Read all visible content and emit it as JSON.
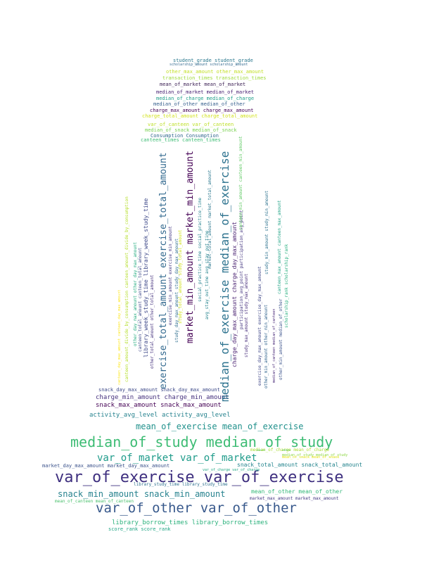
{
  "words": [
    {
      "text": "student_grade student_grade",
      "color": "#2a788e"
    },
    {
      "text": "scholarship_amount scholarship_amount",
      "color": "#31688e"
    },
    {
      "text": "other_max_amount other_max_amount",
      "color": "#c2df23"
    },
    {
      "text": "transaction_times transaction_times",
      "color": "#9fda3a"
    },
    {
      "text": "mean_of_market mean_of_market",
      "color": "#3b1f53"
    },
    {
      "text": "median_of_market median_of_market",
      "color": "#482173"
    },
    {
      "text": "median_of_charge median_of_charge",
      "color": "#1f9e89"
    },
    {
      "text": "median_of_other median_of_other",
      "color": "#355f8d"
    },
    {
      "text": "charge_max_amount charge_max_amount",
      "color": "#440154"
    },
    {
      "text": "charge_total_amount charge_total_amount",
      "color": "#d2e21b"
    },
    {
      "text": "var_of_canteen var_of_canteen",
      "color": "#bddf26"
    },
    {
      "text": "median_of_snack median_of_snack",
      "color": "#7ad151"
    },
    {
      "text": "Consumption Consumption",
      "color": "#31688e"
    },
    {
      "text": "canteen_times canteen_times",
      "color": "#3dbc74"
    },
    {
      "text": "snack_day_max_amount snack_day_max_amount",
      "color": "#3e4a89"
    },
    {
      "text": "charge_min_amount charge_min_amount",
      "color": "#46327e"
    },
    {
      "text": "snack_max_amount snack_max_amount",
      "color": "#440154"
    },
    {
      "text": "activity_avg_level activity_avg_level",
      "color": "#26828e"
    },
    {
      "text": "mean_of_exercise mean_of_exercise",
      "color": "#21918c"
    },
    {
      "text": "median_of_study median_of_study",
      "color": "#3dbc74"
    },
    {
      "text": "var_of_market var_of_market",
      "color": "#1e9b8a"
    },
    {
      "text": "market_day_max_amount market_day_max_amount",
      "color": "#3b528b"
    },
    {
      "text": "snack_total_amount snack_total_amount",
      "color": "#25858e"
    },
    {
      "text": "var_of_exercise var_of_exercise",
      "color": "#3e2f7f"
    },
    {
      "text": "var_of_charge var_of_charge",
      "color": "#22a884"
    },
    {
      "text": "mean_of_snack mean_of_snack",
      "color": "#e5e419"
    },
    {
      "text": "median_of_study median_of_study",
      "color": "#8ed645"
    },
    {
      "text": "library_study_time library_study_time",
      "color": "#2d708e"
    },
    {
      "text": "snack_min_amount snack_min_amount",
      "color": "#26828e"
    },
    {
      "text": "mean_of_other mean_of_other",
      "color": "#35b779"
    },
    {
      "text": "mean_of_canteen mean_of_canteen",
      "color": "#4ac16d"
    },
    {
      "text": "market_max_amount market_max_amount",
      "color": "#443983"
    },
    {
      "text": "var_of_other var_of_other",
      "color": "#38598c"
    },
    {
      "text": "library_borrow_times library_borrow_times",
      "color": "#2db27d"
    },
    {
      "text": "score_rank score_rank",
      "color": "#21a685"
    },
    {
      "text": "median_of_charge mean_of_charge",
      "color": "#aadc32"
    },
    {
      "text": "median_of_exercise median_of_exercise",
      "color": "#2c728e"
    },
    {
      "text": "market_min_amount market_min_amount",
      "color": "#440154"
    },
    {
      "text": "exercise_total_amount exercise_total_amount",
      "color": "#31688e"
    },
    {
      "text": "library_week_study_time library_week_study_time",
      "color": "#3e4989"
    },
    {
      "text": "charge_day_max_amount charge_day_max_amount",
      "color": "#481f70"
    },
    {
      "text": "participation_avg_point participation_avg_point",
      "color": "#453781"
    },
    {
      "text": "study_max_amount study_max_amount",
      "color": "#472d7b"
    },
    {
      "text": "exercise_day_max_amount exercise_day_max_amount",
      "color": "#3f4788"
    },
    {
      "text": "other_min_amount other_min_amount",
      "color": "#32648e"
    },
    {
      "text": "median_of_canteen median_of_canteen",
      "color": "#482878"
    },
    {
      "text": "study_min_amount study_min_amount",
      "color": "#2c728e"
    },
    {
      "text": "canteen_max_amount canteen_max_amount",
      "color": "#20a386"
    },
    {
      "text": "scholarship_rank scholarship_rank",
      "color": "#29af7f"
    },
    {
      "text": "canteen_min_amount canteen_min_amount",
      "color": "#5ec962"
    },
    {
      "text": "canteen_day_max_amount canteen_day_max_amount",
      "color": "#fde725"
    },
    {
      "text": "canteen_amount_divide_by_consumption canteen_amount_divide_by_consumption",
      "color": "#b5de2b"
    },
    {
      "text": "other_day_max_amount other_day_max_amount",
      "color": "#27ad81"
    },
    {
      "text": "canteen_total_amount canteen_total_amount",
      "color": "#3e4a89"
    },
    {
      "text": "other_total_amount other_total_amount",
      "color": "#46337f"
    },
    {
      "text": "exercise_min_amount exercise_min_amount",
      "color": "#443a83"
    },
    {
      "text": "study_day_max_amount study_day_max_amount",
      "color": "#2e6e8e"
    },
    {
      "text": "study_total_amount study_total_amount",
      "color": "#d0e11c"
    },
    {
      "text": "social_practice_time social_practice_time",
      "color": "#26828e"
    },
    {
      "text": "avg_stay_out_time avg_stay_out_time",
      "color": "#25848e"
    },
    {
      "text": "market_total_amount market_total_amount",
      "color": "#2a778e"
    },
    {
      "text": "other_min_amount median_of_other",
      "color": "#3b528b"
    }
  ]
}
